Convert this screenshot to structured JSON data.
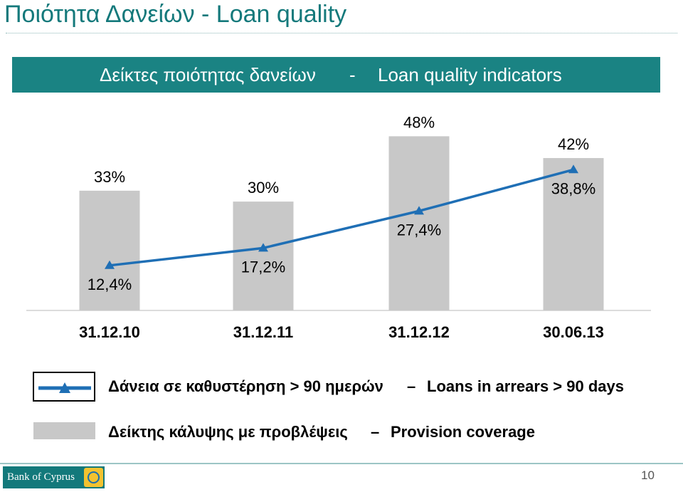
{
  "title": "Ποιότητα Δανείων - Loan quality",
  "banner": {
    "left_text": "Δείκτες ποιότητας δανείων",
    "separator": "-",
    "right_text": "Loan quality indicators"
  },
  "chart_data": {
    "type": "bar",
    "categories": [
      "31.12.10",
      "31.12.11",
      "31.12.12",
      "30.06.13"
    ],
    "series": [
      {
        "name": "Δείκτης κάλυψης με προβλέψεις — Provision coverage",
        "type": "bar",
        "values": [
          33,
          30,
          48,
          42
        ],
        "labels": [
          "33%",
          "30%",
          "48%",
          "42%"
        ],
        "color": "#c8c8c8"
      },
      {
        "name": "Δάνεια σε καθυστέρηση > 90 ημερών — Loans in arrears > 90 days",
        "type": "line",
        "values": [
          12.4,
          17.2,
          27.4,
          38.8
        ],
        "labels": [
          "12,4%",
          "17,2%",
          "27,4%",
          "38,8%"
        ],
        "color": "#1f6fb5"
      }
    ],
    "ylim": [
      0,
      52
    ],
    "grid": false,
    "legend_position": "bottom"
  },
  "legend": {
    "line_gr": "Δάνεια σε καθυστέρηση > 90 ημερών",
    "line_dash": "–",
    "line_en": "Loans in arrears > 90 days",
    "bar_gr": "Δείκτης κάλυψης με προβλέψεις",
    "bar_dash": "–",
    "bar_en": "Provision coverage"
  },
  "footer": {
    "logo_text": "Bank of Cyprus",
    "page_number": "10"
  },
  "colors": {
    "teal": "#1a8383",
    "title_teal": "#14797b",
    "bar_gray": "#c8c8c8",
    "line_blue": "#1f6fb5"
  }
}
